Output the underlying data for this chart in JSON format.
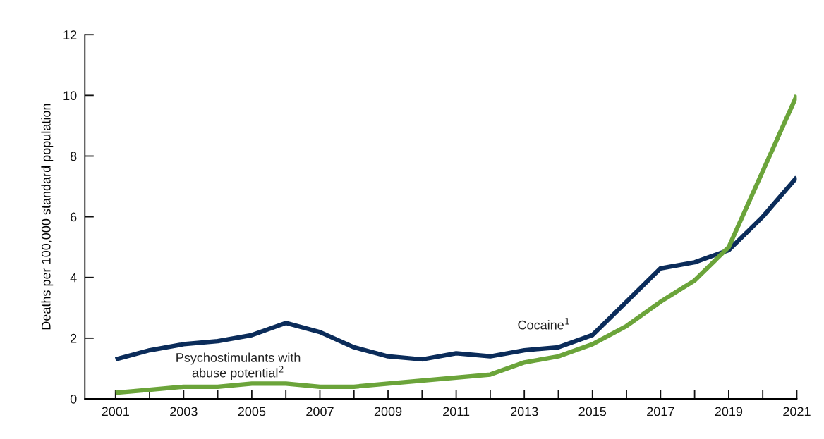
{
  "chart_data": {
    "type": "line",
    "ylabel": "Deaths per 100,000 standard population",
    "x": [
      2001,
      2002,
      2003,
      2004,
      2005,
      2006,
      2007,
      2008,
      2009,
      2010,
      2011,
      2012,
      2013,
      2014,
      2015,
      2016,
      2017,
      2018,
      2019,
      2020,
      2021
    ],
    "series": [
      {
        "name": "Cocaine$^{1}$",
        "color": "#0b2c5a",
        "values": [
          1.3,
          1.6,
          1.8,
          1.9,
          2.1,
          2.5,
          2.2,
          1.7,
          1.4,
          1.3,
          1.5,
          1.4,
          1.6,
          1.7,
          2.1,
          3.2,
          4.3,
          4.5,
          4.9,
          6.0,
          7.3
        ]
      },
      {
        "name": "Psychostimulants with\nabuse potential$^{2}$",
        "color": "#6ba43a",
        "values": [
          0.2,
          0.3,
          0.4,
          0.4,
          0.5,
          0.5,
          0.4,
          0.4,
          0.5,
          0.6,
          0.7,
          0.8,
          1.2,
          1.4,
          1.8,
          2.4,
          3.2,
          3.9,
          5.0,
          7.5,
          10.0
        ]
      }
    ],
    "xlim": [
      2000.1,
      2021.0
    ],
    "xticks": [
      2001,
      {
        "value": 2002,
        "label": null
      },
      2003,
      {
        "value": 2004,
        "label": null
      },
      2005,
      {
        "value": 2006,
        "label": null
      },
      2007,
      {
        "value": 2008,
        "label": null
      },
      2009,
      {
        "value": 2010,
        "label": null
      },
      2011,
      {
        "value": 2012,
        "label": null
      },
      2013,
      {
        "value": 2014,
        "label": null
      },
      2015,
      {
        "value": 2016,
        "label": null
      },
      2017,
      {
        "value": 2018,
        "label": null
      },
      2019,
      {
        "value": 2020,
        "label": null
      },
      2021
    ],
    "ylim": [
      0,
      12
    ],
    "yticks": [
      0,
      2,
      4,
      6,
      8,
      10,
      12
    ],
    "grid": false,
    "legend": false,
    "marker": "none",
    "line_style": "solid"
  }
}
